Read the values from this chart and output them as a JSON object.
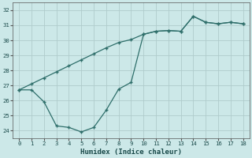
{
  "xlabel": "Humidex (Indice chaleur)",
  "ylabel": "",
  "bg_color": "#cce8e8",
  "grid_color": "#b0cccc",
  "line_color": "#2e6e6a",
  "xlim": [
    -0.5,
    18.5
  ],
  "ylim": [
    23.5,
    32.5
  ],
  "xticks": [
    0,
    1,
    2,
    3,
    4,
    5,
    6,
    7,
    8,
    9,
    10,
    11,
    12,
    13,
    14,
    15,
    16,
    17,
    18
  ],
  "yticks": [
    24,
    25,
    26,
    27,
    28,
    29,
    30,
    31,
    32
  ],
  "upper_line_x": [
    0,
    1,
    2,
    3,
    4,
    5,
    6,
    7,
    8,
    9,
    10,
    11,
    12,
    13,
    14,
    15,
    16,
    17,
    18
  ],
  "upper_line_y": [
    26.7,
    27.1,
    27.5,
    27.9,
    28.3,
    28.7,
    29.1,
    29.5,
    29.85,
    30.05,
    30.4,
    30.6,
    30.65,
    30.6,
    31.6,
    31.2,
    31.1,
    31.2,
    31.1
  ],
  "lower_line_x": [
    0,
    1,
    2,
    3,
    4,
    5,
    6,
    7,
    8,
    9,
    10,
    11,
    12,
    13,
    14,
    15,
    16,
    17,
    18
  ],
  "lower_line_y": [
    26.7,
    26.7,
    25.9,
    24.3,
    24.2,
    23.9,
    24.2,
    25.35,
    26.75,
    27.2,
    30.4,
    30.6,
    30.65,
    30.6,
    31.6,
    31.2,
    31.1,
    31.2,
    31.1
  ]
}
